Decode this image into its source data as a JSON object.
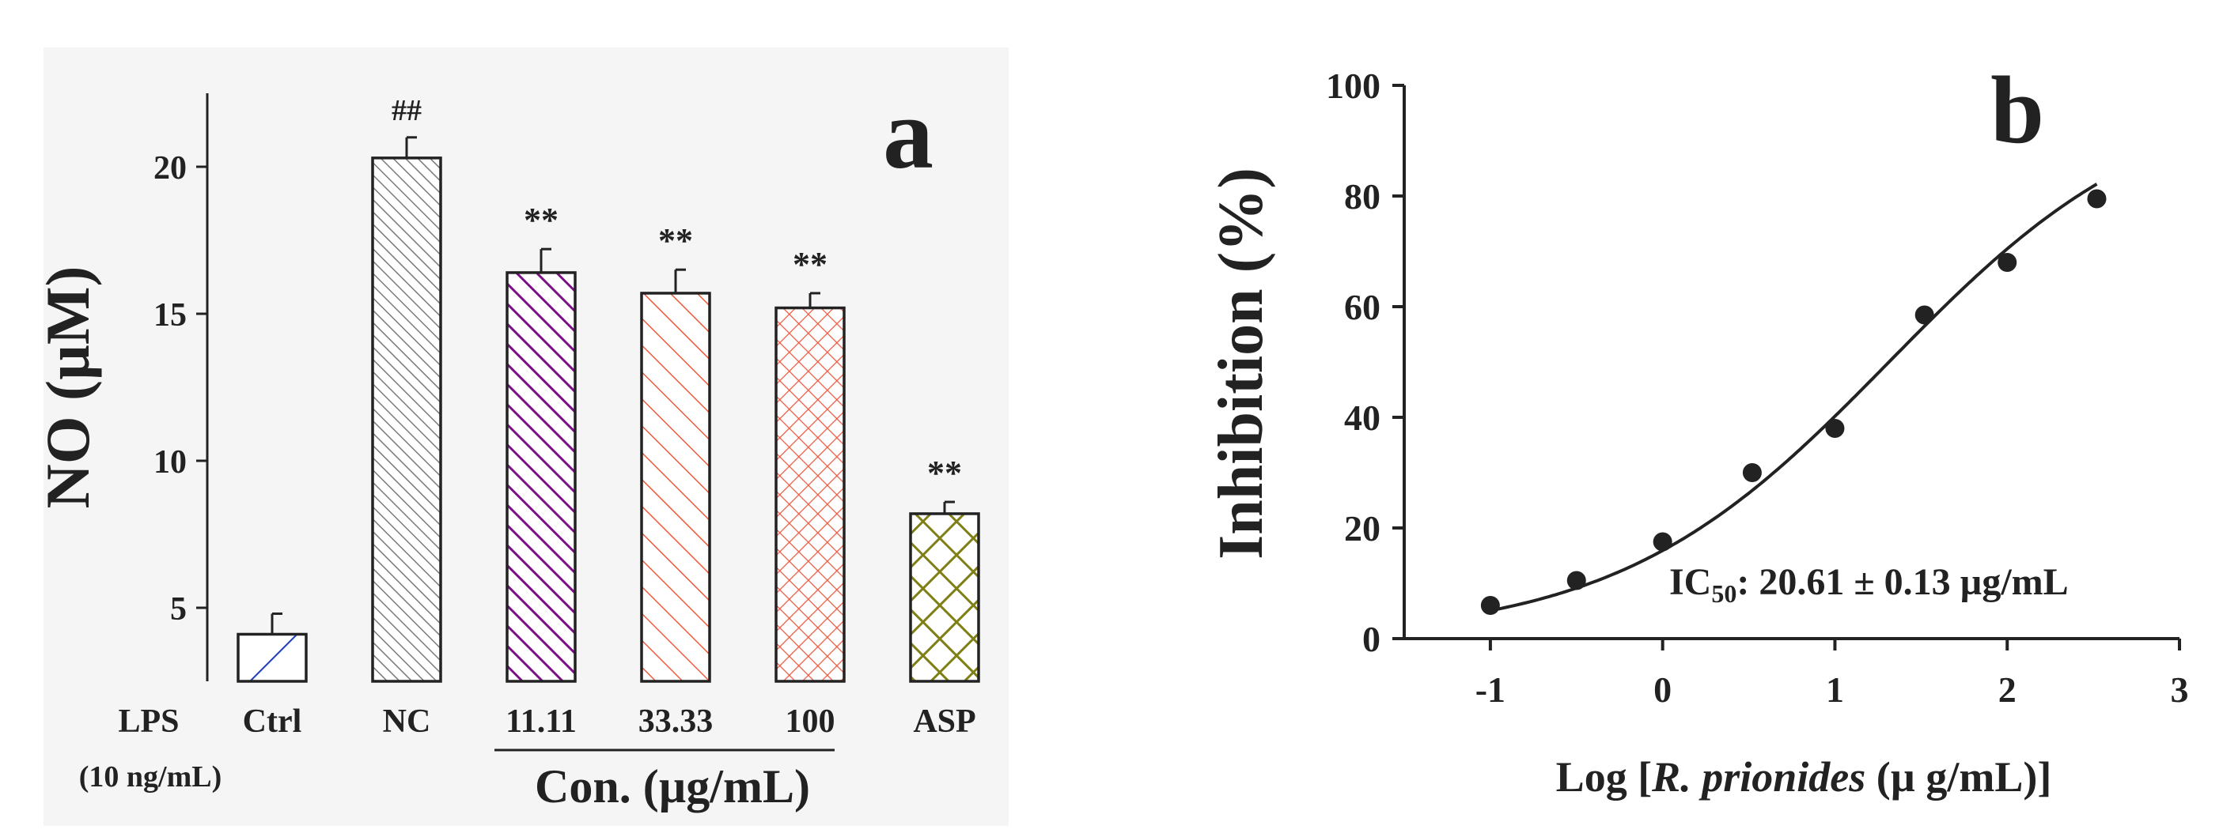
{
  "colors": {
    "ink": "#222222",
    "panel_bg": "#f5f5f5",
    "ctrl": "#1f3fbf",
    "nc": "#7a7a7a",
    "c1111": "#7b1185",
    "c3333": "#f05a3c",
    "c100": "#ec5a40",
    "asp": "#7f7f16"
  },
  "chart_data": [
    {
      "type": "bar",
      "panel_label": "a",
      "ylabel": "NO (µM)",
      "ylim": [
        2.5,
        22.5
      ],
      "yticks": [
        "5",
        "10",
        "15",
        "20"
      ],
      "categories": [
        "Ctrl",
        "NC",
        "11.11",
        "33.33",
        "100",
        "ASP"
      ],
      "values": [
        4.1,
        20.3,
        16.4,
        15.7,
        15.2,
        8.2
      ],
      "errors": [
        0.7,
        0.7,
        0.8,
        0.8,
        0.5,
        0.4
      ],
      "significance": [
        "",
        "##",
        "**",
        "**",
        "**",
        "**"
      ],
      "row_label": "LPS",
      "row_sublabel": "(10 ng/mL)",
      "group_label": "Con. (µg/mL)"
    },
    {
      "type": "scatter",
      "panel_label": "b",
      "ylabel": "Inhibition (%)",
      "xlabel_prefix": "Log [",
      "xlabel_italic": "R. prionides",
      "xlabel_suffix": " (µ g/mL)]",
      "xlim": [
        -1.5,
        3
      ],
      "ylim": [
        0,
        100
      ],
      "xticks": [
        "-1",
        "0",
        "1",
        "2",
        "3"
      ],
      "yticks": [
        "0",
        "20",
        "40",
        "60",
        "80",
        "100"
      ],
      "x": [
        -1,
        -0.5,
        0,
        0.52,
        1,
        1.52,
        2,
        2.52
      ],
      "y": [
        6,
        10.5,
        17.5,
        30,
        38,
        58.5,
        68,
        79.5
      ],
      "fit": {
        "bottom": 0,
        "top": 100,
        "log_ic50": 1.314,
        "hill": 0.55
      },
      "annotation_prefix": "IC",
      "annotation_sub": "50",
      "annotation_suffix": ": 20.61 ± 0.13 µg/mL"
    }
  ]
}
